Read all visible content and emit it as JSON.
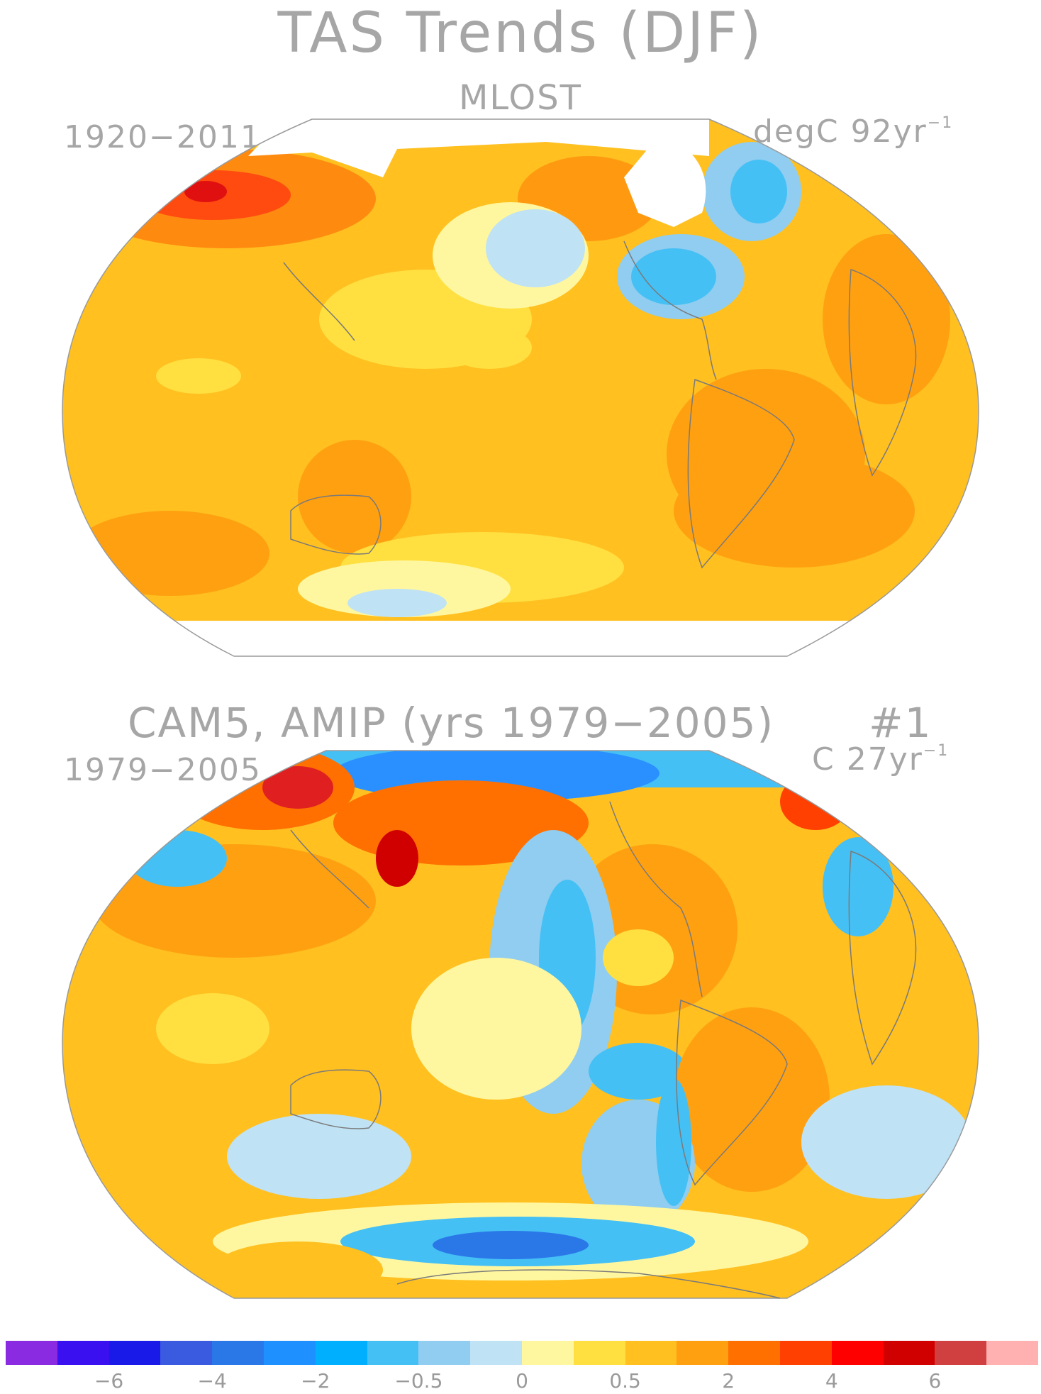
{
  "title": "TAS Trends (DJF)",
  "panel1": {
    "subtitle": "MLOST",
    "left_label": "1920−2011",
    "right_label": "degC 92yr",
    "right_sup": "−1"
  },
  "panel2": {
    "title": "CAM5, AMIP (yrs 1979−2005)",
    "number": "#1",
    "left_label": "1979−2005",
    "right_label": "C 27yr",
    "right_sup": "−1"
  },
  "colorbar": {
    "colors": [
      "#8a2be2",
      "#3a10f0",
      "#1a1ae8",
      "#3a5ae0",
      "#2a78e8",
      "#1e90ff",
      "#00b0ff",
      "#45c0f5",
      "#90cdf0",
      "#bfe2f5",
      "#fff7a0",
      "#ffe040",
      "#ffc020",
      "#ffa010",
      "#ff7000",
      "#ff4000",
      "#ff0000",
      "#d00000",
      "#d04040",
      "#ffb0b0"
    ],
    "tick_labels": [
      {
        "text": "−6",
        "bin": 2
      },
      {
        "text": "−4",
        "bin": 4
      },
      {
        "text": "−2",
        "bin": 6
      },
      {
        "text": "−0.5",
        "bin": 8
      },
      {
        "text": "0",
        "bin": 10
      },
      {
        "text": "0.5",
        "bin": 12
      },
      {
        "text": "2",
        "bin": 14
      },
      {
        "text": "4",
        "bin": 16
      },
      {
        "text": "6",
        "bin": 18
      }
    ]
  }
}
